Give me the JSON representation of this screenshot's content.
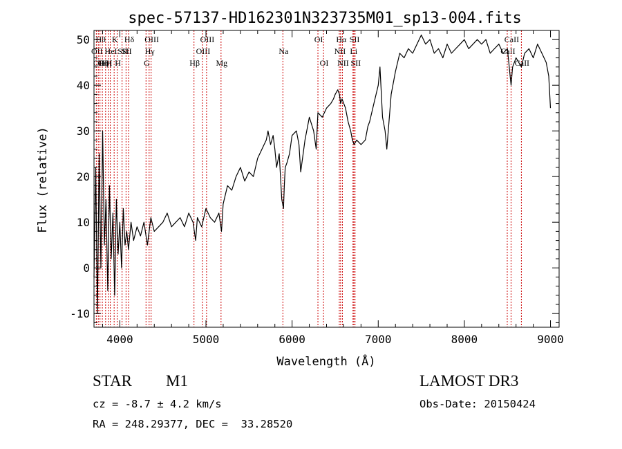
{
  "chart_data": {
    "type": "line",
    "title": "spec-57137-HD162301N323735M01_sp13-004.fits",
    "xlabel": "Wavelength (Å)",
    "ylabel": "Flux (relative)",
    "xlim": [
      3700,
      9100
    ],
    "ylim": [
      -13,
      52
    ],
    "xticks": [
      4000,
      5000,
      6000,
      7000,
      8000,
      9000
    ],
    "yticks": [
      -10,
      0,
      10,
      20,
      30,
      40,
      50
    ],
    "grid": false,
    "legend": "none",
    "line_color": "#000000",
    "marker_color": "#cc0000",
    "series": [
      {
        "x": [
          3700,
          3720,
          3740,
          3760,
          3780,
          3800,
          3820,
          3840,
          3860,
          3880,
          3900,
          3920,
          3940,
          3960,
          3980,
          4000,
          4020,
          4040,
          4060,
          4080,
          4100,
          4130,
          4160,
          4200,
          4240,
          4280,
          4320,
          4360,
          4400,
          4450,
          4500,
          4550,
          4600,
          4650,
          4700,
          4750,
          4800,
          4850,
          4880,
          4900,
          4950,
          5000,
          5050,
          5100,
          5150,
          5180,
          5200,
          5250,
          5300,
          5350,
          5400,
          5450,
          5500,
          5550,
          5600,
          5650,
          5700,
          5720,
          5750,
          5780,
          5800,
          5820,
          5850,
          5880,
          5900,
          5910,
          5920,
          5940,
          5970,
          6000,
          6050,
          6080,
          6100,
          6150,
          6180,
          6200,
          6250,
          6280,
          6300,
          6350,
          6400,
          6450,
          6480,
          6500,
          6530,
          6550,
          6563,
          6580,
          6620,
          6650,
          6680,
          6700,
          6720,
          6750,
          6800,
          6850,
          6880,
          6900,
          6950,
          7000,
          7020,
          7050,
          7080,
          7100,
          7150,
          7200,
          7250,
          7300,
          7350,
          7400,
          7450,
          7500,
          7550,
          7600,
          7650,
          7700,
          7750,
          7800,
          7850,
          7900,
          7950,
          8000,
          8050,
          8100,
          8150,
          8200,
          8250,
          8300,
          8350,
          8400,
          8450,
          8500,
          8542,
          8560,
          8600,
          8662,
          8700,
          8750,
          8800,
          8850,
          8900,
          8950,
          8980,
          9000
        ],
        "y": [
          -2,
          22,
          -10,
          25,
          0,
          30,
          5,
          15,
          -5,
          18,
          2,
          12,
          -6,
          15,
          3,
          10,
          0,
          13,
          5,
          8,
          4,
          10,
          6,
          9,
          7,
          10,
          5,
          11,
          8,
          9,
          10,
          12,
          9,
          10,
          11,
          9,
          12,
          10,
          6,
          11,
          9,
          13,
          11,
          10,
          12,
          8,
          14,
          18,
          17,
          20,
          22,
          19,
          21,
          20,
          24,
          26,
          28,
          30,
          27,
          29,
          26,
          22,
          25,
          15,
          13,
          18,
          22,
          23,
          25,
          29,
          30,
          27,
          21,
          28,
          31,
          33,
          30,
          26,
          34,
          33,
          35,
          36,
          37,
          38,
          39,
          38,
          36,
          37,
          35,
          32,
          30,
          28,
          27,
          28,
          27,
          28,
          31,
          32,
          36,
          40,
          44,
          33,
          30,
          26,
          38,
          43,
          47,
          46,
          48,
          47,
          49,
          51,
          49,
          50,
          47,
          48,
          46,
          49,
          47,
          48,
          49,
          50,
          48,
          49,
          50,
          49,
          50,
          47,
          48,
          49,
          47,
          48,
          40,
          44,
          46,
          44,
          47,
          48,
          46,
          49,
          47,
          45,
          42,
          35
        ]
      }
    ],
    "line_markers": [
      {
        "x": 3727,
        "label": "OII",
        "row": 1
      },
      {
        "x": 3750,
        "label": "OII",
        "row": 2
      },
      {
        "x": 3770,
        "label": "Hθ",
        "row": 0
      },
      {
        "x": 3797,
        "label": "Hη",
        "row": 2
      },
      {
        "x": 3835,
        "label": "Hη",
        "row": 2
      },
      {
        "x": 3869,
        "label": "H",
        "row": 2
      },
      {
        "x": 3889,
        "label": "HeI",
        "row": 1
      },
      {
        "x": 3934,
        "label": "K",
        "row": 0
      },
      {
        "x": 3969,
        "label": "H",
        "row": 2
      },
      {
        "x": 4026,
        "label": "SII",
        "row": 1
      },
      {
        "x": 4072,
        "label": "SII",
        "row": 1
      },
      {
        "x": 4102,
        "label": "Hδ",
        "row": 0
      },
      {
        "x": 4304,
        "label": "G",
        "row": 2
      },
      {
        "x": 4340,
        "label": "Hγ",
        "row": 1
      },
      {
        "x": 4363,
        "label": "OIII",
        "row": 0
      },
      {
        "x": 4861,
        "label": "Hβ",
        "row": 2
      },
      {
        "x": 4959,
        "label": "OIII",
        "row": 1
      },
      {
        "x": 5007,
        "label": "OIII",
        "row": 0
      },
      {
        "x": 5175,
        "label": "Mg",
        "row": 2
      },
      {
        "x": 5893,
        "label": "Na",
        "row": 1
      },
      {
        "x": 6300,
        "label": "OI",
        "row": 0
      },
      {
        "x": 6364,
        "label": "OI",
        "row": 2
      },
      {
        "x": 6548,
        "label": "NII",
        "row": 1
      },
      {
        "x": 6563,
        "label": "Hα",
        "row": 0
      },
      {
        "x": 6584,
        "label": "NII",
        "row": 2
      },
      {
        "x": 6707,
        "label": "Li",
        "row": 1
      },
      {
        "x": 6717,
        "label": "SII",
        "row": 0
      },
      {
        "x": 6731,
        "label": "SII",
        "row": 2
      },
      {
        "x": 8498,
        "label": "CaII",
        "row": 1
      },
      {
        "x": 8542,
        "label": "CaII",
        "row": 0
      },
      {
        "x": 8662,
        "label": "CaII",
        "row": 2
      }
    ]
  },
  "info": {
    "object_type": "STAR",
    "subclass": "M1",
    "survey": "LAMOST DR3",
    "cz_text": "cz = -8.7 ± 4.2 km/s",
    "obs_date": "Obs-Date: 20150424",
    "coords": "RA = 248.29377, DEC =  33.28520"
  }
}
